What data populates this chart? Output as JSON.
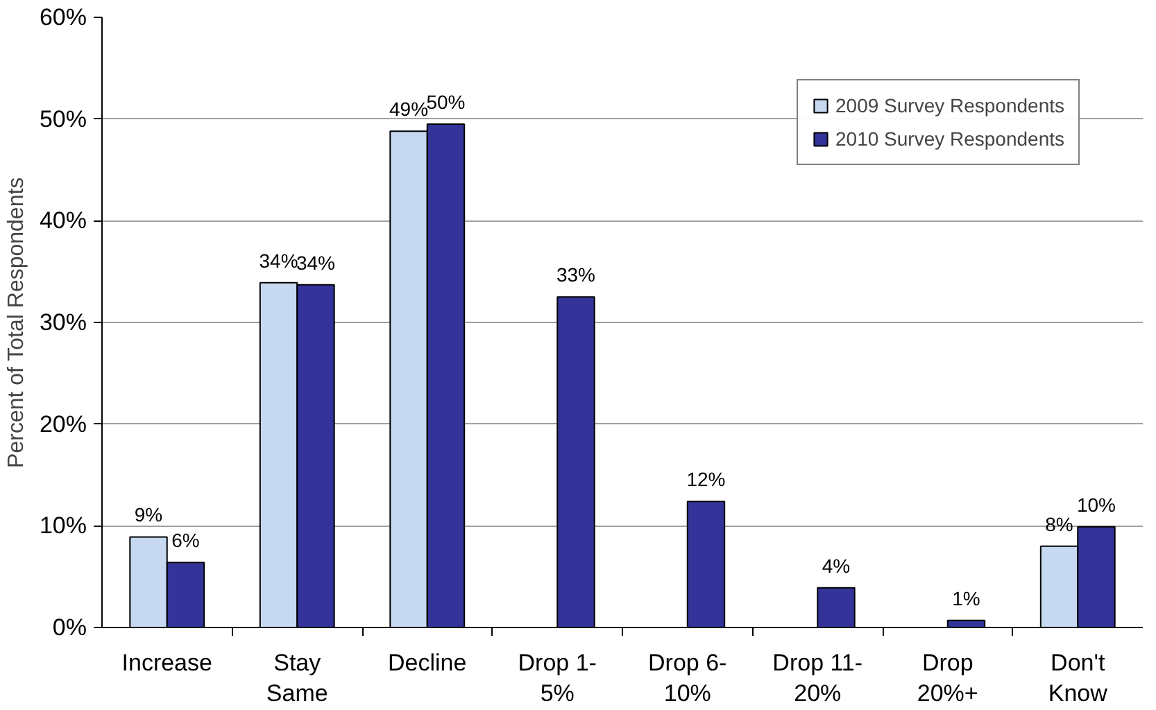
{
  "chart_data": {
    "type": "bar",
    "ylabel": "Percent of Total Respondents",
    "categories": [
      "Increase",
      "Stay\nSame",
      "Decline",
      "Drop 1-\n5%",
      "Drop 6-\n10%",
      "Drop 11-\n20%",
      "Drop\n20%+",
      "Don't\nKnow"
    ],
    "series": [
      {
        "name": "2009 Survey Respondents",
        "color": "#c6d9f1",
        "values": [
          8.9,
          33.9,
          48.8,
          null,
          null,
          null,
          null,
          8.0
        ],
        "value_labels": [
          "9%",
          "34%",
          "49%",
          null,
          null,
          null,
          null,
          "8%"
        ]
      },
      {
        "name": "2010 Survey Respondents",
        "color": "#333399",
        "values": [
          6.4,
          33.7,
          49.5,
          32.5,
          12.4,
          3.9,
          0.7,
          9.9
        ],
        "value_labels": [
          "6%",
          "34%",
          "50%",
          "33%",
          "12%",
          "4%",
          "1%",
          "10%"
        ]
      }
    ],
    "ylim": [
      0,
      60
    ],
    "yticks": [
      {
        "value": 0,
        "label": "0%"
      },
      {
        "value": 10,
        "label": "10%"
      },
      {
        "value": 20,
        "label": "20%"
      },
      {
        "value": 30,
        "label": "30%"
      },
      {
        "value": 40,
        "label": "40%"
      },
      {
        "value": 50,
        "label": "50%"
      },
      {
        "value": 60,
        "label": "60%"
      }
    ],
    "grid": "y",
    "legend": "top right"
  }
}
